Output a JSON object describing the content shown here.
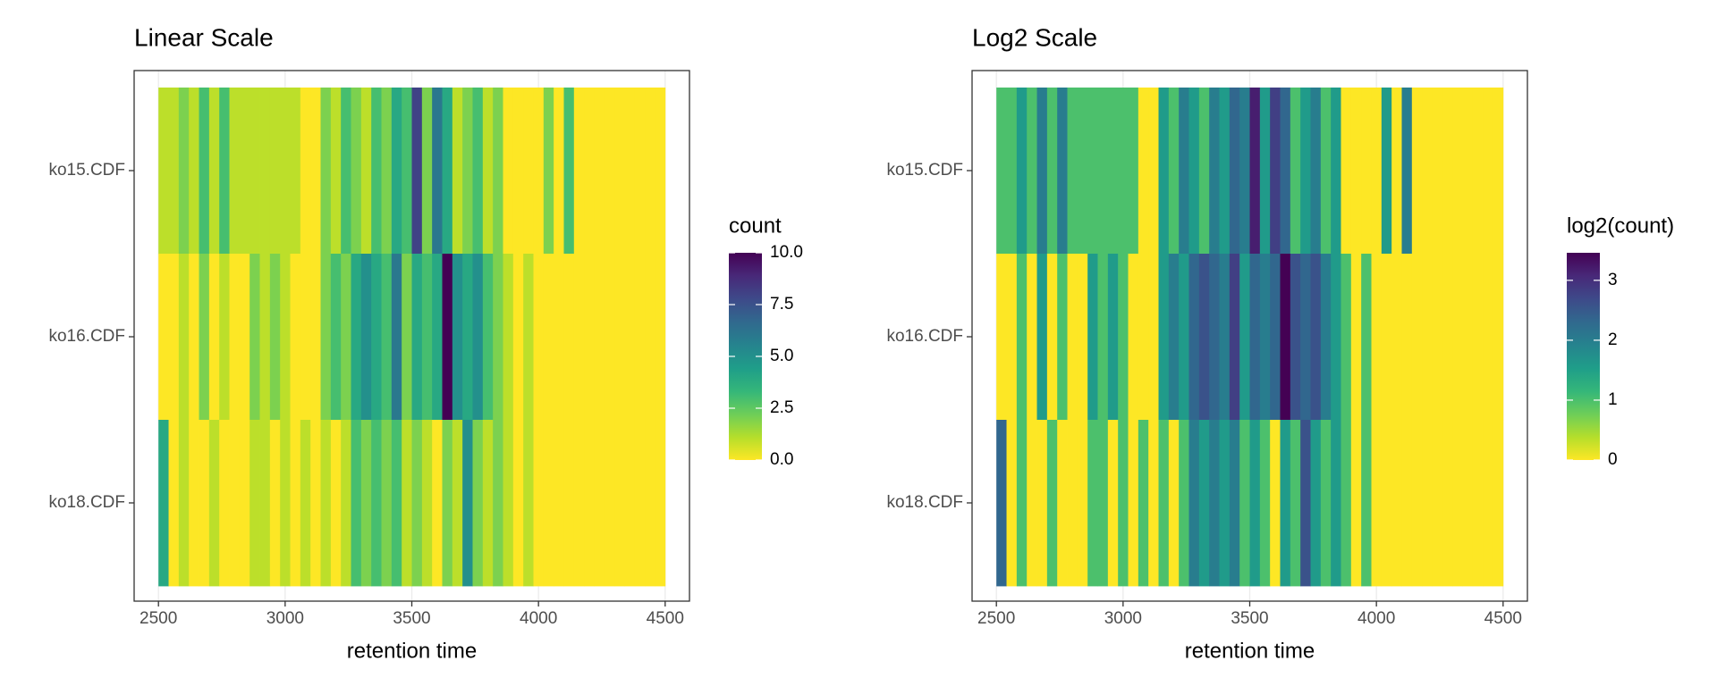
{
  "chart_data": [
    {
      "type": "heatmap",
      "title": "Linear Scale",
      "x_label": "retention time",
      "categories": [
        "ko15.CDF",
        "ko16.CDF",
        "ko18.CDF"
      ],
      "xbins": [
        2500,
        2540,
        2580,
        2620,
        2660,
        2700,
        2740,
        2780,
        2820,
        2860,
        2900,
        2940,
        2980,
        3020,
        3060,
        3100,
        3140,
        3180,
        3220,
        3260,
        3300,
        3340,
        3380,
        3420,
        3460,
        3500,
        3540,
        3580,
        3620,
        3660,
        3700,
        3740,
        3780,
        3820,
        3860,
        3900,
        3940,
        3980,
        4020,
        4060,
        4100,
        4140,
        4180,
        4220,
        4260,
        4300,
        4340,
        4380,
        4420,
        4460,
        4500
      ],
      "z": [
        [
          1,
          1,
          2,
          1,
          3,
          1,
          3,
          1,
          1,
          1,
          1,
          1,
          1,
          1,
          0,
          0,
          2,
          1,
          3,
          2,
          1,
          3,
          2,
          4,
          3,
          8,
          2,
          6,
          4,
          1,
          2,
          3,
          1,
          2,
          0,
          0,
          0,
          0,
          2,
          0,
          3,
          0,
          0,
          0,
          0,
          0,
          0,
          0,
          0,
          0
        ],
        [
          0,
          0,
          1,
          0,
          2,
          0,
          1,
          0,
          0,
          2,
          1,
          2,
          1,
          0,
          0,
          0,
          2,
          3,
          2,
          4,
          5,
          4,
          3,
          6,
          2,
          4,
          3,
          4,
          10,
          5,
          4,
          5,
          3,
          2,
          1,
          0,
          1,
          0,
          0,
          0,
          0,
          0,
          0,
          0,
          0,
          0,
          0,
          0,
          0,
          0
        ],
        [
          4,
          0,
          1,
          0,
          0,
          1,
          0,
          0,
          0,
          1,
          1,
          0,
          1,
          0,
          1,
          0,
          1,
          0,
          1,
          3,
          2,
          3,
          2,
          3,
          1,
          2,
          1,
          0,
          2,
          1,
          5,
          2,
          1,
          2,
          1,
          0,
          1,
          0,
          0,
          0,
          0,
          0,
          0,
          0,
          0,
          0,
          0,
          0,
          0,
          0
        ]
      ],
      "xlim": [
        2404,
        4596
      ],
      "xticks": [
        2500,
        3000,
        3500,
        4000,
        4500
      ],
      "grid": true,
      "colorbar": {
        "title": "count",
        "lim": [
          0,
          10
        ],
        "ticks": [
          {
            "value": 0,
            "label": "0.0"
          },
          {
            "value": 2.5,
            "label": "2.5"
          },
          {
            "value": 5,
            "label": "5.0"
          },
          {
            "value": 7.5,
            "label": "7.5"
          },
          {
            "value": 10,
            "label": "10.0"
          }
        ]
      }
    },
    {
      "type": "heatmap",
      "title": "Log2 Scale",
      "x_label": "retention time",
      "categories": [
        "ko15.CDF",
        "ko16.CDF",
        "ko18.CDF"
      ],
      "xbins": [
        2500,
        2540,
        2580,
        2620,
        2660,
        2700,
        2740,
        2780,
        2820,
        2860,
        2900,
        2940,
        2980,
        3020,
        3060,
        3100,
        3140,
        3180,
        3220,
        3260,
        3300,
        3340,
        3380,
        3420,
        3460,
        3500,
        3540,
        3580,
        3620,
        3660,
        3700,
        3740,
        3780,
        3820,
        3860,
        3900,
        3940,
        3980,
        4020,
        4060,
        4100,
        4140,
        4180,
        4220,
        4260,
        4300,
        4340,
        4380,
        4420,
        4460,
        4500
      ],
      "z": [
        [
          1,
          1,
          1.58,
          1,
          2,
          1,
          2,
          1,
          1,
          1,
          1,
          1,
          1,
          1,
          0,
          0,
          1.58,
          1,
          2,
          1.58,
          1,
          2,
          1.58,
          2.32,
          2,
          3.17,
          1.58,
          2.81,
          2.32,
          1,
          1.58,
          2,
          1,
          1.58,
          0,
          0,
          0,
          0,
          1.58,
          0,
          2,
          0,
          0,
          0,
          0,
          0,
          0,
          0,
          0,
          0
        ],
        [
          0,
          0,
          1,
          0,
          1.58,
          0,
          1,
          0,
          0,
          1.58,
          1,
          1.58,
          1,
          0,
          0,
          0,
          1.58,
          2,
          1.58,
          2.32,
          2.58,
          2.32,
          2,
          2.81,
          1.58,
          2.32,
          2,
          2.32,
          3.46,
          2.58,
          2.32,
          2.58,
          2,
          1.58,
          1,
          0,
          1,
          0,
          0,
          0,
          0,
          0,
          0,
          0,
          0,
          0,
          0,
          0,
          0,
          0
        ],
        [
          2.32,
          0,
          1,
          0,
          0,
          1,
          0,
          0,
          0,
          1,
          1,
          0,
          1,
          0,
          1,
          0,
          1,
          0,
          1,
          2,
          1.58,
          2,
          1.58,
          2,
          1,
          1.58,
          1,
          0,
          1.58,
          1,
          2.58,
          1.58,
          1,
          1.58,
          1,
          0,
          1,
          0,
          0,
          0,
          0,
          0,
          0,
          0,
          0,
          0,
          0,
          0,
          0,
          0
        ]
      ],
      "xlim": [
        2404,
        4596
      ],
      "xticks": [
        2500,
        3000,
        3500,
        4000,
        4500
      ],
      "grid": true,
      "colorbar": {
        "title": "log2(count)",
        "lim": [
          0,
          3.46
        ],
        "ticks": [
          0,
          1,
          2,
          3
        ]
      }
    }
  ]
}
